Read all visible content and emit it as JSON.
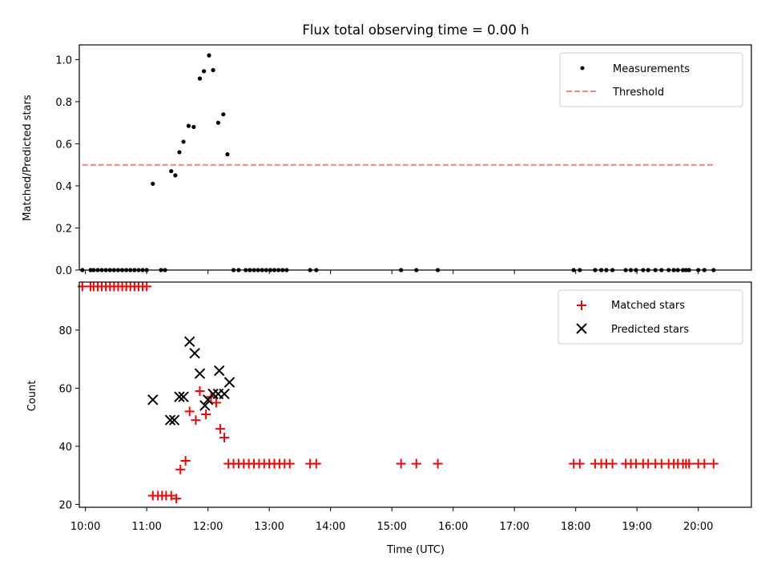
{
  "chart_data": [
    {
      "type": "scatter",
      "title": "Flux total observing time = 0.00 h",
      "xlabel": "",
      "ylabel": "Matched/Predicted stars",
      "xlim": [
        "09:54",
        "20:52"
      ],
      "ylim": [
        0.0,
        1.07
      ],
      "x_ticks": [
        "10:00",
        "11:00",
        "12:00",
        "13:00",
        "14:00",
        "15:00",
        "16:00",
        "17:00",
        "18:00",
        "19:00",
        "20:00"
      ],
      "y_ticks": [
        "0.0",
        "0.2",
        "0.4",
        "0.6",
        "0.8",
        "1.0"
      ],
      "legend_position": "top-right",
      "grid": false,
      "series": [
        {
          "name": "Measurements",
          "marker": "dot",
          "color": "#000000",
          "points": [
            [
              "09:57",
              0.0
            ],
            [
              "10:05",
              0.0
            ],
            [
              "10:08",
              0.0
            ],
            [
              "10:12",
              0.0
            ],
            [
              "10:16",
              0.0
            ],
            [
              "10:20",
              0.0
            ],
            [
              "10:24",
              0.0
            ],
            [
              "10:28",
              0.0
            ],
            [
              "10:32",
              0.0
            ],
            [
              "10:36",
              0.0
            ],
            [
              "10:40",
              0.0
            ],
            [
              "10:44",
              0.0
            ],
            [
              "10:48",
              0.0
            ],
            [
              "10:52",
              0.0
            ],
            [
              "10:56",
              0.0
            ],
            [
              "11:00",
              0.0
            ],
            [
              "11:14",
              0.0
            ],
            [
              "11:18",
              0.0
            ],
            [
              "11:06",
              0.41
            ],
            [
              "11:24",
              0.47
            ],
            [
              "11:28",
              0.45
            ],
            [
              "11:32",
              0.56
            ],
            [
              "11:36",
              0.61
            ],
            [
              "11:41",
              0.685
            ],
            [
              "11:46",
              0.68
            ],
            [
              "11:52",
              0.91
            ],
            [
              "11:56",
              0.945
            ],
            [
              "12:01",
              1.02
            ],
            [
              "12:05",
              0.95
            ],
            [
              "12:10",
              0.7
            ],
            [
              "12:15",
              0.74
            ],
            [
              "12:19",
              0.55
            ],
            [
              "12:25",
              0.0
            ],
            [
              "12:30",
              0.0
            ],
            [
              "12:37",
              0.0
            ],
            [
              "12:41",
              0.0
            ],
            [
              "12:45",
              0.0
            ],
            [
              "12:49",
              0.0
            ],
            [
              "12:53",
              0.0
            ],
            [
              "12:57",
              0.0
            ],
            [
              "13:01",
              0.0
            ],
            [
              "13:05",
              0.0
            ],
            [
              "13:09",
              0.0
            ],
            [
              "13:13",
              0.0
            ],
            [
              "13:17",
              0.0
            ],
            [
              "13:40",
              0.0
            ],
            [
              "13:46",
              0.0
            ],
            [
              "15:09",
              0.0
            ],
            [
              "15:24",
              0.0
            ],
            [
              "15:45",
              0.0
            ],
            [
              "17:58",
              0.0
            ],
            [
              "18:04",
              0.0
            ],
            [
              "18:19",
              0.0
            ],
            [
              "18:25",
              0.0
            ],
            [
              "18:30",
              0.0
            ],
            [
              "18:36",
              0.0
            ],
            [
              "18:49",
              0.0
            ],
            [
              "18:54",
              0.0
            ],
            [
              "18:59",
              0.0
            ],
            [
              "19:06",
              0.0
            ],
            [
              "19:11",
              0.0
            ],
            [
              "19:18",
              0.0
            ],
            [
              "19:24",
              0.0
            ],
            [
              "19:31",
              0.0
            ],
            [
              "19:36",
              0.0
            ],
            [
              "19:40",
              0.0
            ],
            [
              "19:45",
              0.0
            ],
            [
              "19:48",
              0.0
            ],
            [
              "19:51",
              0.0
            ],
            [
              "20:00",
              0.0
            ],
            [
              "20:06",
              0.0
            ],
            [
              "20:15",
              0.0
            ]
          ]
        },
        {
          "name": "Threshold",
          "marker": "dashed-line",
          "color": "#ff7f7f",
          "points": [
            [
              "09:57",
              0.5
            ],
            [
              "20:15",
              0.5
            ]
          ]
        }
      ]
    },
    {
      "type": "scatter",
      "title": "",
      "xlabel": "Time (UTC)",
      "ylabel": "Count",
      "xlim": [
        "09:54",
        "20:52"
      ],
      "ylim": [
        19,
        96.5
      ],
      "x_ticks": [
        "10:00",
        "11:00",
        "12:00",
        "13:00",
        "14:00",
        "15:00",
        "16:00",
        "17:00",
        "18:00",
        "19:00",
        "20:00"
      ],
      "y_ticks": [
        "20",
        "40",
        "60",
        "80"
      ],
      "legend_position": "top-right",
      "grid": false,
      "series": [
        {
          "name": "Matched stars",
          "marker": "plus",
          "color": "#ff0000",
          "points": [
            [
              "09:57",
              95
            ],
            [
              "10:05",
              95
            ],
            [
              "10:08",
              95
            ],
            [
              "10:12",
              95
            ],
            [
              "10:16",
              95
            ],
            [
              "10:20",
              95
            ],
            [
              "10:24",
              95
            ],
            [
              "10:28",
              95
            ],
            [
              "10:32",
              95
            ],
            [
              "10:36",
              95
            ],
            [
              "10:40",
              95
            ],
            [
              "10:44",
              95
            ],
            [
              "10:48",
              95
            ],
            [
              "10:52",
              95
            ],
            [
              "10:56",
              95
            ],
            [
              "11:00",
              95
            ],
            [
              "11:06",
              23
            ],
            [
              "11:11",
              23
            ],
            [
              "11:15",
              23
            ],
            [
              "11:19",
              23
            ],
            [
              "11:24",
              23
            ],
            [
              "11:29",
              22
            ],
            [
              "11:33",
              32
            ],
            [
              "11:38",
              35
            ],
            [
              "11:42",
              52
            ],
            [
              "11:48",
              49
            ],
            [
              "11:52",
              59
            ],
            [
              "11:58",
              51
            ],
            [
              "12:03",
              57
            ],
            [
              "12:08",
              55
            ],
            [
              "12:12",
              46
            ],
            [
              "12:16",
              43
            ],
            [
              "12:20",
              34
            ],
            [
              "12:25",
              34
            ],
            [
              "12:30",
              34
            ],
            [
              "12:35",
              34
            ],
            [
              "12:40",
              34
            ],
            [
              "12:45",
              34
            ],
            [
              "12:50",
              34
            ],
            [
              "12:55",
              34
            ],
            [
              "13:00",
              34
            ],
            [
              "13:05",
              34
            ],
            [
              "13:10",
              34
            ],
            [
              "13:15",
              34
            ],
            [
              "13:20",
              34
            ],
            [
              "13:40",
              34
            ],
            [
              "13:46",
              34
            ],
            [
              "15:09",
              34
            ],
            [
              "15:24",
              34
            ],
            [
              "15:45",
              34
            ],
            [
              "17:58",
              34
            ],
            [
              "18:04",
              34
            ],
            [
              "18:19",
              34
            ],
            [
              "18:25",
              34
            ],
            [
              "18:30",
              34
            ],
            [
              "18:36",
              34
            ],
            [
              "18:49",
              34
            ],
            [
              "18:54",
              34
            ],
            [
              "18:59",
              34
            ],
            [
              "19:06",
              34
            ],
            [
              "19:11",
              34
            ],
            [
              "19:18",
              34
            ],
            [
              "19:24",
              34
            ],
            [
              "19:31",
              34
            ],
            [
              "19:36",
              34
            ],
            [
              "19:40",
              34
            ],
            [
              "19:45",
              34
            ],
            [
              "19:48",
              34
            ],
            [
              "19:51",
              34
            ],
            [
              "20:00",
              34
            ],
            [
              "20:06",
              34
            ],
            [
              "20:15",
              34
            ]
          ]
        },
        {
          "name": "Predicted stars",
          "marker": "x",
          "color": "#000000",
          "points": [
            [
              "11:06",
              56
            ],
            [
              "11:23",
              49
            ],
            [
              "11:27",
              49
            ],
            [
              "11:32",
              57
            ],
            [
              "11:36",
              57
            ],
            [
              "11:42",
              76
            ],
            [
              "11:47",
              72
            ],
            [
              "11:52",
              65
            ],
            [
              "11:57",
              54
            ],
            [
              "12:00",
              56
            ],
            [
              "12:05",
              58
            ],
            [
              "12:10",
              58
            ],
            [
              "12:11",
              66
            ],
            [
              "12:16",
              58
            ],
            [
              "12:21",
              62
            ]
          ]
        }
      ]
    }
  ]
}
